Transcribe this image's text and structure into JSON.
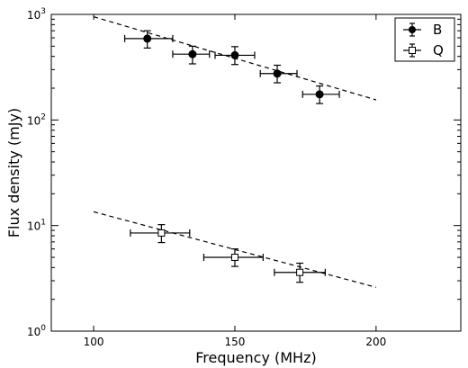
{
  "chart_data": {
    "type": "scatter",
    "xlabel": "Frequency (MHz)",
    "ylabel": "Flux density  (mJy)",
    "xlim": [
      85,
      230
    ],
    "ylim": [
      1,
      1000
    ],
    "yscale": "log",
    "x_ticks": [
      {
        "value": 100,
        "label": "100"
      },
      {
        "value": 150,
        "label": "150"
      },
      {
        "value": 200,
        "label": "200"
      }
    ],
    "y_ticks": [
      {
        "value": 1,
        "label": "10",
        "exp": "0"
      },
      {
        "value": 10,
        "label": "10",
        "exp": "1"
      },
      {
        "value": 100,
        "label": "10",
        "exp": "2"
      },
      {
        "value": 1000,
        "label": "10",
        "exp": "3"
      }
    ],
    "legend": {
      "position": "top-right"
    },
    "series": [
      {
        "name": "B",
        "marker": "filled-circle",
        "points": [
          {
            "x": 119,
            "xlo": 111,
            "xhi": 128,
            "y": 590,
            "ylo": 480,
            "yhi": 700
          },
          {
            "x": 135,
            "xlo": 128,
            "xhi": 141,
            "y": 420,
            "ylo": 340,
            "yhi": 500
          },
          {
            "x": 150,
            "xlo": 143,
            "xhi": 157,
            "y": 410,
            "ylo": 335,
            "yhi": 495
          },
          {
            "x": 165,
            "xlo": 159,
            "xhi": 172,
            "y": 275,
            "ylo": 225,
            "yhi": 330
          },
          {
            "x": 180,
            "xlo": 174,
            "xhi": 187,
            "y": 175,
            "ylo": 143,
            "yhi": 210
          }
        ],
        "fit": {
          "x": [
            100,
            200
          ],
          "y": [
            950,
            155
          ]
        }
      },
      {
        "name": "Q",
        "marker": "open-square",
        "points": [
          {
            "x": 124,
            "xlo": 113,
            "xhi": 134,
            "y": 8.5,
            "ylo": 6.9,
            "yhi": 10.2
          },
          {
            "x": 150,
            "xlo": 139,
            "xhi": 160,
            "y": 5.0,
            "ylo": 4.1,
            "yhi": 6.0
          },
          {
            "x": 173,
            "xlo": 164,
            "xhi": 182,
            "y": 3.6,
            "ylo": 2.9,
            "yhi": 4.4
          }
        ],
        "fit": {
          "x": [
            100,
            200
          ],
          "y": [
            13.5,
            2.6
          ]
        }
      }
    ]
  }
}
